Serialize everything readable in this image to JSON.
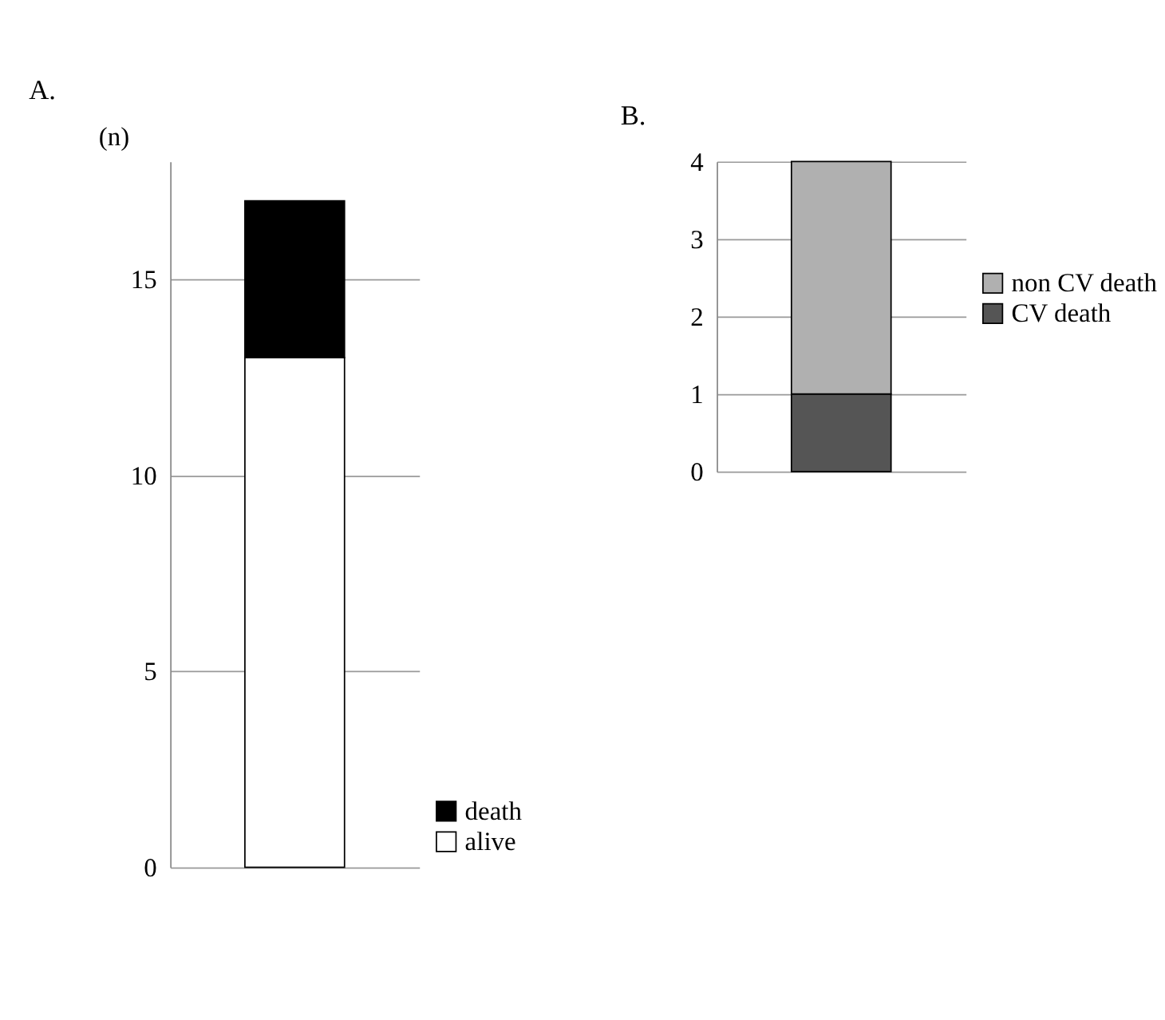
{
  "chart_data": [
    {
      "type": "bar",
      "title": "A.",
      "ylabel": "(n)",
      "stacked": true,
      "categories": [
        null
      ],
      "series": [
        {
          "name": "alive",
          "color": "#ffffff",
          "values": [
            13
          ]
        },
        {
          "name": "death",
          "color": "#000000",
          "values": [
            4
          ]
        }
      ],
      "ylim": [
        0,
        18
      ],
      "yticks": [
        0,
        5,
        10,
        15
      ],
      "grid": "y",
      "legend": "bottom right"
    },
    {
      "type": "bar",
      "title": "B.",
      "stacked": true,
      "categories": [
        null
      ],
      "series": [
        {
          "name": "CV death",
          "color": "#555555",
          "values": [
            1
          ]
        },
        {
          "name": "non CV death",
          "color": "#b0b0b0",
          "values": [
            3
          ]
        }
      ],
      "ylim": [
        0,
        4
      ],
      "yticks": [
        0,
        1,
        2,
        3,
        4
      ],
      "grid": "y",
      "legend": "right"
    }
  ]
}
